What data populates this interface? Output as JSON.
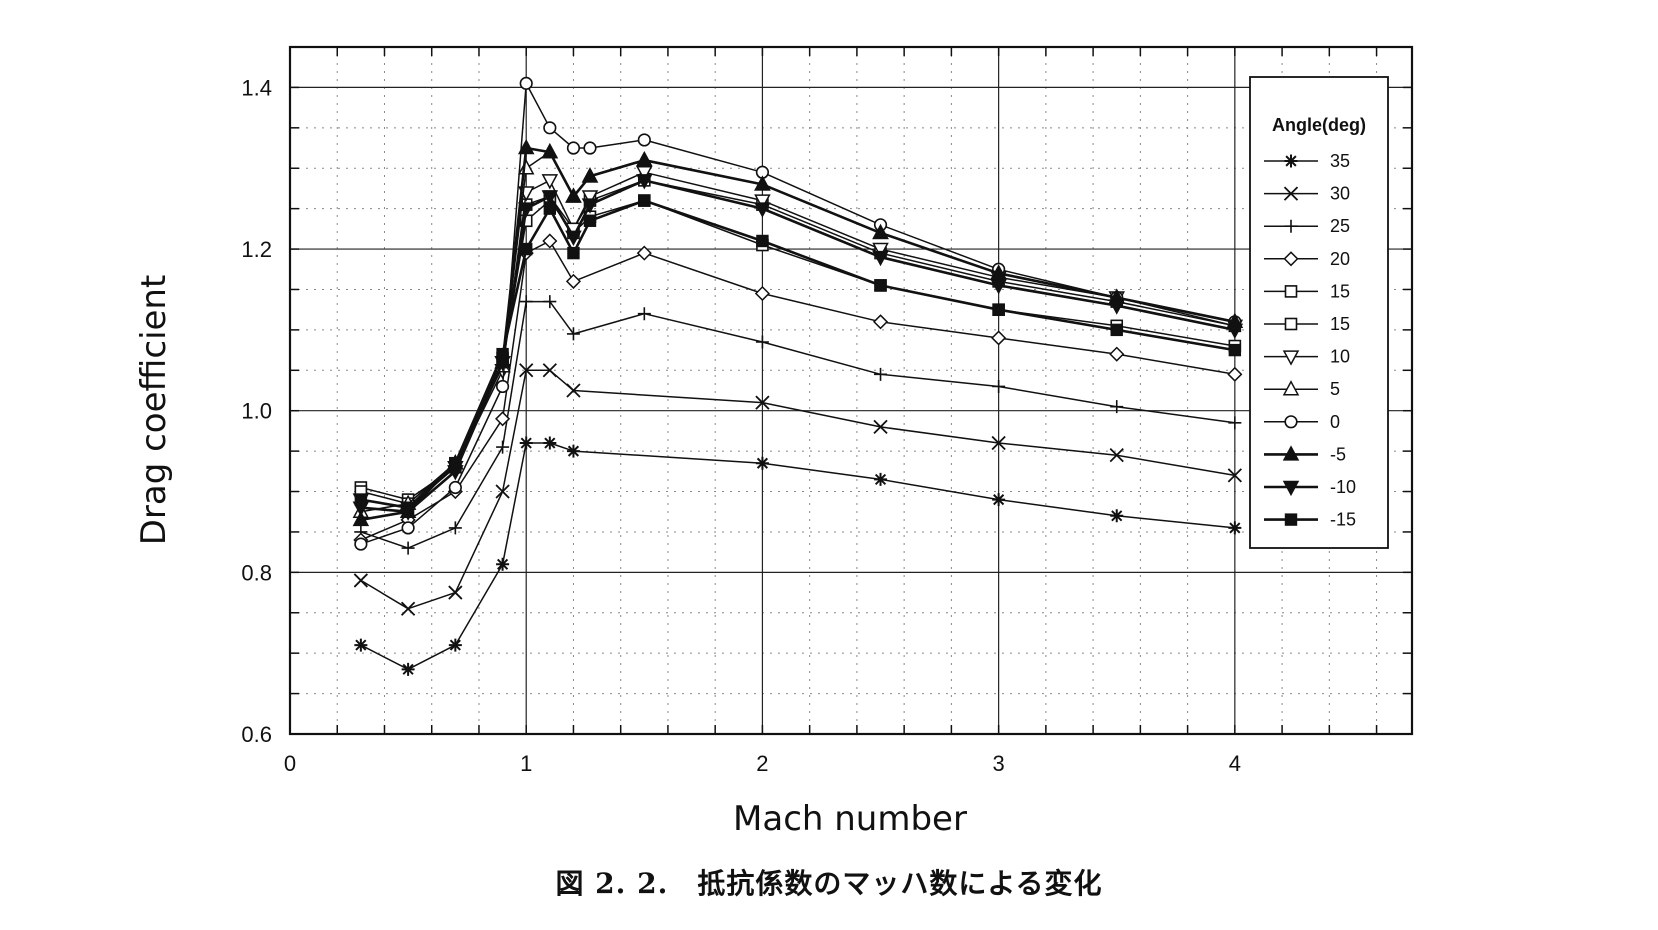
{
  "caption": "図 2. 2.　抵抗係数のマッハ数による変化",
  "chart_data": {
    "type": "line",
    "xlabel": "Mach number",
    "ylabel": "Drag coefficient",
    "xlim": [
      0,
      4.75
    ],
    "ylim": [
      0.6,
      1.45
    ],
    "xticks": [
      0,
      1,
      2,
      3,
      4
    ],
    "xtick_labels": [
      "0",
      "1",
      "2",
      "3",
      "4"
    ],
    "yticks": [
      0.6,
      0.8,
      1.0,
      1.2,
      1.4
    ],
    "ytick_labels": [
      "0.6",
      "0.8",
      "1.0",
      "1.2",
      "1.4"
    ],
    "grid": true,
    "legend_title": "Angle(deg)",
    "legend_position": "top-right",
    "series": [
      {
        "name": "35",
        "marker": "asterisk",
        "bold": false,
        "x": [
          0.3,
          0.5,
          0.7,
          0.9,
          1.0,
          1.1,
          1.2,
          2.0,
          2.5,
          3.0,
          3.5,
          4.0
        ],
        "values": [
          0.71,
          0.68,
          0.71,
          0.81,
          0.96,
          0.96,
          0.95,
          0.935,
          0.915,
          0.89,
          0.87,
          0.855
        ]
      },
      {
        "name": "30",
        "marker": "x",
        "bold": false,
        "x": [
          0.3,
          0.5,
          0.7,
          0.9,
          1.0,
          1.1,
          1.2,
          2.0,
          2.5,
          3.0,
          3.5,
          4.0
        ],
        "values": [
          0.79,
          0.755,
          0.775,
          0.9,
          1.05,
          1.05,
          1.025,
          1.01,
          0.98,
          0.96,
          0.945,
          0.92
        ]
      },
      {
        "name": "25",
        "marker": "plus",
        "bold": false,
        "x": [
          0.3,
          0.5,
          0.7,
          0.9,
          1.0,
          1.1,
          1.2,
          1.5,
          2.0,
          2.5,
          3.0,
          3.5,
          4.0
        ],
        "values": [
          0.85,
          0.83,
          0.855,
          0.955,
          1.135,
          1.135,
          1.095,
          1.12,
          1.085,
          1.045,
          1.03,
          1.005,
          0.985
        ]
      },
      {
        "name": "20",
        "marker": "diamond",
        "bold": false,
        "x": [
          0.3,
          0.5,
          0.7,
          0.9,
          1.0,
          1.1,
          1.2,
          1.5,
          2.0,
          2.5,
          3.0,
          3.5,
          4.0
        ],
        "values": [
          0.84,
          0.865,
          0.9,
          0.99,
          1.195,
          1.21,
          1.16,
          1.195,
          1.145,
          1.11,
          1.09,
          1.07,
          1.045
        ]
      },
      {
        "name": "15",
        "marker": "square-open",
        "bold": false,
        "x": [
          0.3,
          0.5,
          0.7,
          0.9,
          1.0,
          1.1,
          1.2,
          1.27,
          1.5,
          2.0,
          2.5,
          3.0,
          3.5,
          4.0
        ],
        "values": [
          0.905,
          0.89,
          0.93,
          1.06,
          1.235,
          1.26,
          1.22,
          1.24,
          1.26,
          1.205,
          1.155,
          1.125,
          1.105,
          1.08
        ]
      },
      {
        "name": "15",
        "marker": "square-open",
        "bold": false,
        "x": [
          0.3,
          0.5,
          0.7,
          0.9,
          1.0,
          1.1,
          1.2,
          1.27,
          1.5,
          2.0,
          2.5,
          3.0,
          3.5,
          4.0
        ],
        "values": [
          0.9,
          0.885,
          0.935,
          1.065,
          1.255,
          1.265,
          1.225,
          1.26,
          1.285,
          1.255,
          1.195,
          1.16,
          1.135,
          1.105
        ]
      },
      {
        "name": "10",
        "marker": "triangle-down-open",
        "bold": false,
        "x": [
          0.3,
          0.5,
          0.7,
          0.9,
          1.0,
          1.1,
          1.2,
          1.27,
          1.5,
          2.0,
          2.5,
          3.0,
          3.5,
          4.0
        ],
        "values": [
          0.89,
          0.88,
          0.93,
          1.05,
          1.27,
          1.285,
          1.225,
          1.265,
          1.295,
          1.26,
          1.2,
          1.165,
          1.14,
          1.105
        ]
      },
      {
        "name": "5",
        "marker": "triangle-up-open",
        "bold": false,
        "x": [
          0.3,
          0.5,
          0.7,
          0.9,
          1.0,
          1.1,
          1.2,
          1.27,
          1.5,
          2.0,
          2.5,
          3.0,
          3.5,
          4.0
        ],
        "values": [
          0.875,
          0.885,
          0.935,
          1.055,
          1.3,
          1.32,
          1.265,
          1.29,
          1.31,
          1.28,
          1.22,
          1.17,
          1.14,
          1.11
        ]
      },
      {
        "name": "0",
        "marker": "circle-open",
        "bold": false,
        "x": [
          0.3,
          0.5,
          0.7,
          0.9,
          1.0,
          1.1,
          1.2,
          1.27,
          1.5,
          2.0,
          2.5,
          3.0,
          3.5,
          4.0
        ],
        "values": [
          0.835,
          0.855,
          0.905,
          1.03,
          1.405,
          1.35,
          1.325,
          1.325,
          1.335,
          1.295,
          1.23,
          1.175,
          1.14,
          1.11
        ]
      },
      {
        "name": "-5",
        "marker": "triangle-up-filled",
        "bold": true,
        "x": [
          0.3,
          0.5,
          0.7,
          0.9,
          1.0,
          1.1,
          1.2,
          1.27,
          1.5,
          2.0,
          2.5,
          3.0,
          3.5,
          4.0
        ],
        "values": [
          0.865,
          0.875,
          0.935,
          1.06,
          1.325,
          1.32,
          1.265,
          1.29,
          1.31,
          1.28,
          1.22,
          1.17,
          1.14,
          1.11
        ]
      },
      {
        "name": "-10",
        "marker": "triangle-down-filled",
        "bold": true,
        "x": [
          0.3,
          0.5,
          0.7,
          0.9,
          1.0,
          1.1,
          1.2,
          1.27,
          1.5,
          2.0,
          2.5,
          3.0,
          3.5,
          4.0
        ],
        "values": [
          0.88,
          0.875,
          0.925,
          1.06,
          1.25,
          1.265,
          1.215,
          1.255,
          1.285,
          1.25,
          1.19,
          1.155,
          1.13,
          1.1
        ]
      },
      {
        "name": "-15",
        "marker": "square-filled",
        "bold": true,
        "x": [
          0.3,
          0.5,
          0.7,
          0.9,
          1.0,
          1.1,
          1.2,
          1.27,
          1.5,
          2.0,
          2.5,
          3.0,
          3.5,
          4.0
        ],
        "values": [
          0.89,
          0.88,
          0.935,
          1.07,
          1.2,
          1.25,
          1.195,
          1.235,
          1.26,
          1.21,
          1.155,
          1.125,
          1.1,
          1.075
        ]
      }
    ]
  }
}
